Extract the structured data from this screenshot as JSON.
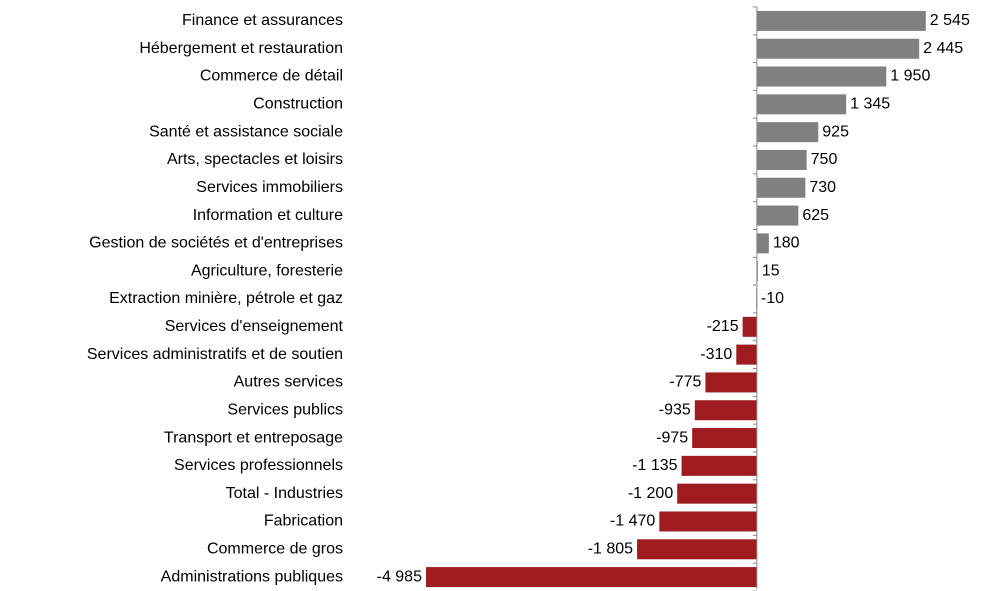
{
  "chart_data": {
    "type": "bar",
    "orientation": "horizontal",
    "categories": [
      "Finance et assurances",
      "Hébergement et restauration",
      "Commerce de détail",
      "Construction",
      "Santé et assistance sociale",
      "Arts, spectacles et loisirs",
      "Services immobiliers",
      "Information et culture",
      "Gestion de sociétés et d'entreprises",
      "Agriculture, foresterie",
      "Extraction minière, pétrole et gaz",
      "Services d'enseignement",
      "Services administratifs et de soutien",
      "Autres services",
      "Services publics",
      "Transport et entreposage",
      "Services professionnels",
      "Total - Industries",
      "Fabrication",
      "Commerce de gros",
      "Administrations publiques"
    ],
    "values": [
      2545,
      2445,
      1950,
      1345,
      925,
      750,
      730,
      625,
      180,
      15,
      -10,
      -215,
      -310,
      -775,
      -935,
      -975,
      -1135,
      -1200,
      -1470,
      -1805,
      -4985
    ],
    "value_labels": [
      "2 545",
      "2 445",
      "1 950",
      "1 345",
      "925",
      "750",
      "730",
      "625",
      "180",
      "15",
      "-10",
      "-215",
      "-310",
      "-775",
      "-935",
      "-975",
      "-1 135",
      "-1 200",
      "-1 470",
      "-1 805",
      "-4 985"
    ],
    "colors": [
      "#808080",
      "#808080",
      "#808080",
      "#808080",
      "#808080",
      "#808080",
      "#808080",
      "#808080",
      "#808080",
      "#808080",
      "#808080",
      "#9e1b20",
      "#9e1b20",
      "#9e1b20",
      "#9e1b20",
      "#9e1b20",
      "#9e1b20",
      "#9e1b20",
      "#9e1b20",
      "#9e1b20",
      "#9e1b20"
    ],
    "xlim": [
      -5000,
      3000
    ]
  }
}
